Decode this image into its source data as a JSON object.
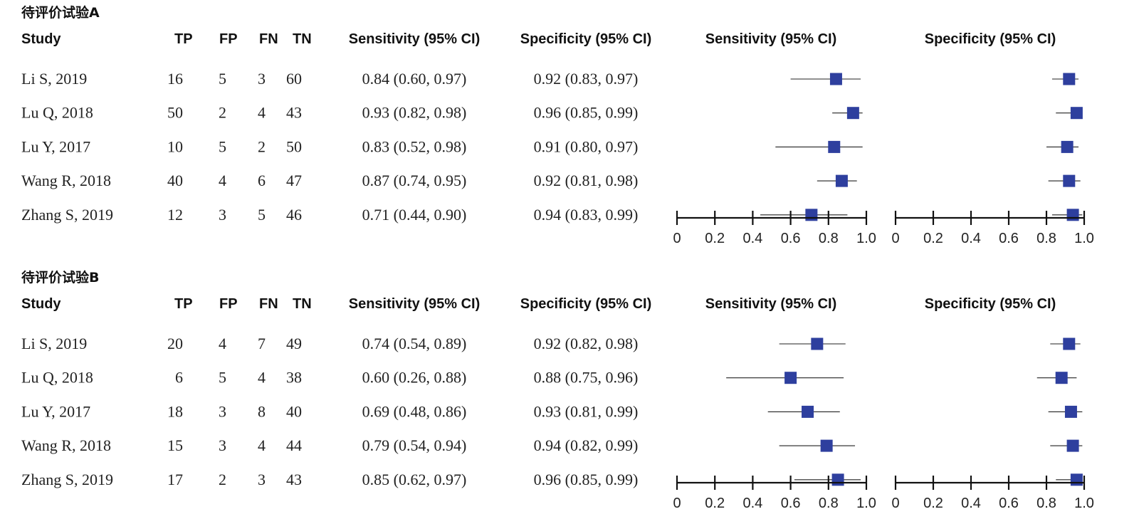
{
  "columns": {
    "study": "Study",
    "tp": "TP",
    "fp": "FP",
    "fn": "FN",
    "tn": "TN",
    "sensitivity": "Sensitivity (95% CI)",
    "specificity": "Specificity (95% CI)"
  },
  "panels": [
    {
      "title": "待评价试验A",
      "rows": [
        {
          "study": "Li S, 2019",
          "tp": "16",
          "fp": "5",
          "fn": "3",
          "tn": "60",
          "sens_text": "0.84 (0.60, 0.97)",
          "spec_text": "0.92 (0.83, 0.97)"
        },
        {
          "study": "Lu Q, 2018",
          "tp": "50",
          "fp": "2",
          "fn": "4",
          "tn": "43",
          "sens_text": "0.93 (0.82, 0.98)",
          "spec_text": "0.96 (0.85, 0.99)"
        },
        {
          "study": "Lu Y, 2017",
          "tp": "10",
          "fp": "5",
          "fn": "2",
          "tn": "50",
          "sens_text": "0.83 (0.52, 0.98)",
          "spec_text": "0.91 (0.80, 0.97)"
        },
        {
          "study": "Wang R, 2018",
          "tp": "40",
          "fp": "4",
          "fn": "6",
          "tn": "47",
          "sens_text": "0.87 (0.74, 0.95)",
          "spec_text": "0.92 (0.81, 0.98)"
        },
        {
          "study": "Zhang S, 2019",
          "tp": "12",
          "fp": "3",
          "fn": "5",
          "tn": "46",
          "sens_text": "0.71 (0.44, 0.90)",
          "spec_text": "0.94 (0.83, 0.99)"
        }
      ]
    },
    {
      "title": "待评价试验B",
      "rows": [
        {
          "study": "Li S, 2019",
          "tp": "20",
          "fp": "4",
          "fn": "7",
          "tn": "49",
          "sens_text": "0.74 (0.54, 0.89)",
          "spec_text": "0.92 (0.82, 0.98)"
        },
        {
          "study": "Lu Q, 2018",
          "tp": "6",
          "fp": "5",
          "fn": "4",
          "tn": "38",
          "sens_text": "0.60 (0.26, 0.88)",
          "spec_text": "0.88 (0.75, 0.96)"
        },
        {
          "study": "Lu Y, 2017",
          "tp": "18",
          "fp": "3",
          "fn": "8",
          "tn": "40",
          "sens_text": "0.69 (0.48, 0.86)",
          "spec_text": "0.93 (0.81, 0.99)"
        },
        {
          "study": "Wang R, 2018",
          "tp": "15",
          "fp": "3",
          "fn": "4",
          "tn": "44",
          "sens_text": "0.79 (0.54, 0.94)",
          "spec_text": "0.94 (0.82, 0.99)"
        },
        {
          "study": "Zhang S, 2019",
          "tp": "17",
          "fp": "2",
          "fn": "3",
          "tn": "43",
          "sens_text": "0.85 (0.62, 0.97)",
          "spec_text": "0.96 (0.85, 0.99)"
        }
      ]
    }
  ],
  "chart_data": [
    {
      "type": "forest",
      "panel": "待评价试验A",
      "title": "Sensitivity (95% CI)",
      "categories": [
        "Li S, 2019",
        "Lu Q, 2018",
        "Lu Y, 2017",
        "Wang R, 2018",
        "Zhang S, 2019"
      ],
      "values": [
        0.84,
        0.93,
        0.83,
        0.87,
        0.71
      ],
      "ci_low": [
        0.6,
        0.82,
        0.52,
        0.74,
        0.44
      ],
      "ci_high": [
        0.97,
        0.98,
        0.98,
        0.95,
        0.9
      ],
      "xlim": [
        0,
        1.0
      ],
      "ticks": [
        "0",
        "0.2",
        "0.4",
        "0.6",
        "0.8",
        "1.0"
      ],
      "color": "#2e3f9e"
    },
    {
      "type": "forest",
      "panel": "待评价试验A",
      "title": "Specificity (95% CI)",
      "categories": [
        "Li S, 2019",
        "Lu Q, 2018",
        "Lu Y, 2017",
        "Wang R, 2018",
        "Zhang S, 2019"
      ],
      "values": [
        0.92,
        0.96,
        0.91,
        0.92,
        0.94
      ],
      "ci_low": [
        0.83,
        0.85,
        0.8,
        0.81,
        0.83
      ],
      "ci_high": [
        0.97,
        0.99,
        0.97,
        0.98,
        0.99
      ],
      "xlim": [
        0,
        1.0
      ],
      "ticks": [
        "0",
        "0.2",
        "0.4",
        "0.6",
        "0.8",
        "1.0"
      ],
      "color": "#2e3f9e"
    },
    {
      "type": "forest",
      "panel": "待评价试验B",
      "title": "Sensitivity (95% CI)",
      "categories": [
        "Li S, 2019",
        "Lu Q, 2018",
        "Lu Y, 2017",
        "Wang R, 2018",
        "Zhang S, 2019"
      ],
      "values": [
        0.74,
        0.6,
        0.69,
        0.79,
        0.85
      ],
      "ci_low": [
        0.54,
        0.26,
        0.48,
        0.54,
        0.62
      ],
      "ci_high": [
        0.89,
        0.88,
        0.86,
        0.94,
        0.97
      ],
      "xlim": [
        0,
        1.0
      ],
      "ticks": [
        "0",
        "0.2",
        "0.4",
        "0.6",
        "0.8",
        "1.0"
      ],
      "color": "#2e3f9e"
    },
    {
      "type": "forest",
      "panel": "待评价试验B",
      "title": "Specificity (95% CI)",
      "categories": [
        "Li S, 2019",
        "Lu Q, 2018",
        "Lu Y, 2017",
        "Wang R, 2018",
        "Zhang S, 2019"
      ],
      "values": [
        0.92,
        0.88,
        0.93,
        0.94,
        0.96
      ],
      "ci_low": [
        0.82,
        0.75,
        0.81,
        0.82,
        0.85
      ],
      "ci_high": [
        0.98,
        0.96,
        0.99,
        0.99,
        0.99
      ],
      "xlim": [
        0,
        1.0
      ],
      "ticks": [
        "0",
        "0.2",
        "0.4",
        "0.6",
        "0.8",
        "1.0"
      ],
      "color": "#2e3f9e"
    }
  ]
}
